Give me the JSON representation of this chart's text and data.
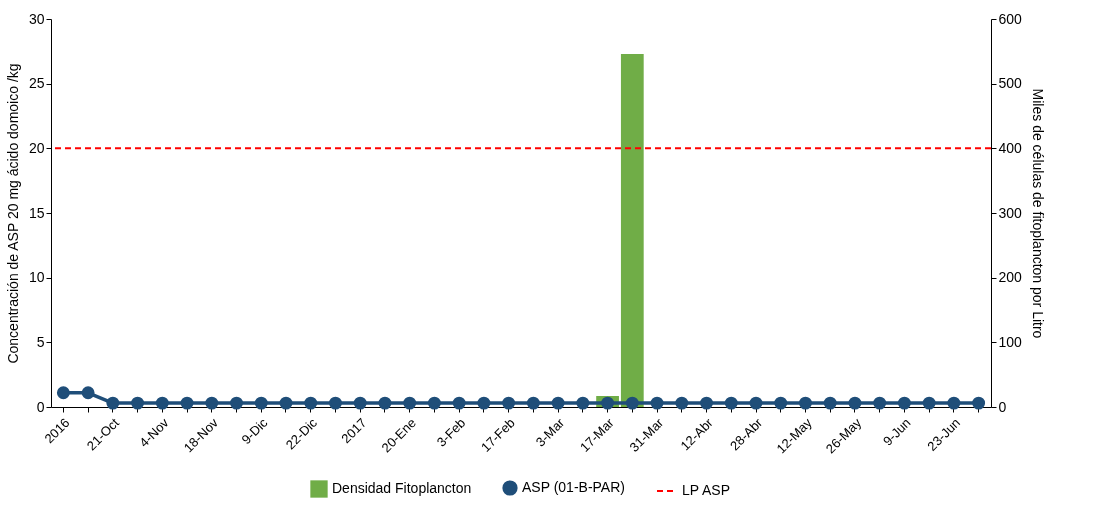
{
  "chart_data": {
    "type": "line",
    "ylabel": "Concentración de ASP 20 mg ácido domoico /kg",
    "y2label": "Miles de células de fitoplancton  por Litro",
    "categories": [
      "2016",
      null,
      "21-Oct",
      null,
      "4-Nov",
      null,
      "18-Nov",
      null,
      "9-Dic",
      null,
      "22-Dic",
      null,
      "2017",
      null,
      "20-Ene",
      null,
      "3-Feb",
      null,
      "17-Feb",
      null,
      "3-Mar",
      null,
      "17-Mar",
      null,
      "31-Mar",
      null,
      "12-Abr",
      null,
      "28-Abr",
      null,
      "12-May",
      null,
      "26-May",
      null,
      "9-Jun",
      null,
      "23-Jun",
      null
    ],
    "series": [
      {
        "name": "Densidad Fitoplancton",
        "type": "bar",
        "axis": "y2",
        "color": "#70ad47",
        "values": [
          0,
          0,
          0,
          0,
          0,
          0,
          0,
          0,
          0,
          0,
          0,
          0,
          0,
          0,
          0,
          0,
          0,
          0,
          0,
          0,
          0,
          null,
          17,
          546,
          0,
          0,
          0,
          0,
          0,
          0,
          0,
          0,
          0,
          0,
          0,
          0,
          0,
          0
        ]
      },
      {
        "name": "ASP (01-B-PAR)",
        "color": "#1f4e79",
        "marker": "circle",
        "line_style": "solid",
        "values": [
          1.1,
          1.1,
          0.3,
          0.3,
          0.3,
          0.3,
          0.3,
          0.3,
          0.3,
          0.3,
          0.3,
          0.3,
          0.3,
          0.3,
          0.3,
          0.3,
          0.3,
          0.3,
          0.3,
          0.3,
          0.3,
          0.3,
          0.3,
          0.3,
          0.3,
          0.3,
          0.3,
          0.3,
          0.3,
          0.3,
          0.3,
          0.3,
          0.3,
          0.3,
          0.3,
          0.3,
          0.3,
          0.3
        ]
      }
    ],
    "ref_lines": [
      {
        "axis": "y",
        "value": 20,
        "label": "LP ASP",
        "color": "#ff0000",
        "line_style": "dashed"
      }
    ],
    "ylim": [
      0,
      30
    ],
    "yticks": [
      0,
      5,
      10,
      15,
      20,
      25,
      30
    ],
    "y2lim": [
      0,
      600
    ],
    "y2ticks": [
      0,
      100,
      200,
      300,
      400,
      500,
      600
    ],
    "legend": "bottom"
  }
}
